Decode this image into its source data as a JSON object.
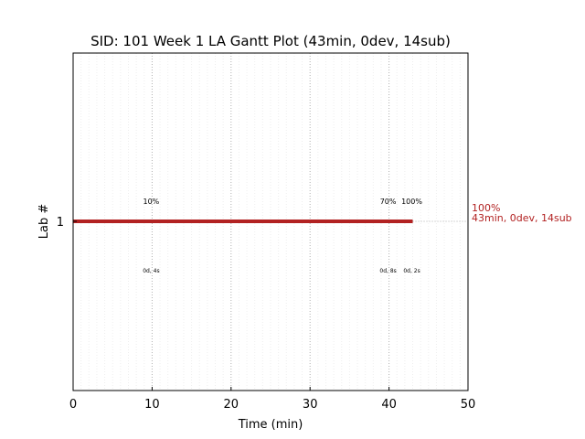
{
  "chart_data": {
    "type": "gantt",
    "title": "SID: 101 Week 1 LA Gantt Plot (43min, 0dev, 14sub)",
    "xlabel": "Time (min)",
    "ylabel": "Lab #",
    "xlim": [
      0,
      50
    ],
    "xticks": [
      "0",
      "10",
      "20",
      "30",
      "40",
      "50"
    ],
    "yticks": [
      "1"
    ],
    "grid": true,
    "series_color": "#b22222",
    "rows": [
      {
        "lab": 1,
        "start": 0,
        "end": 43,
        "end_label_top": "100%",
        "end_label_bottom": "43min, 0dev, 14sub",
        "milestones": [
          {
            "x": 10,
            "pct": "10%",
            "stat": "0d, 4s"
          },
          {
            "x": 40,
            "pct": "70%",
            "stat": "0d, 8s"
          },
          {
            "x": 43,
            "pct": "100%",
            "stat": "0d, 2s"
          }
        ]
      }
    ]
  }
}
